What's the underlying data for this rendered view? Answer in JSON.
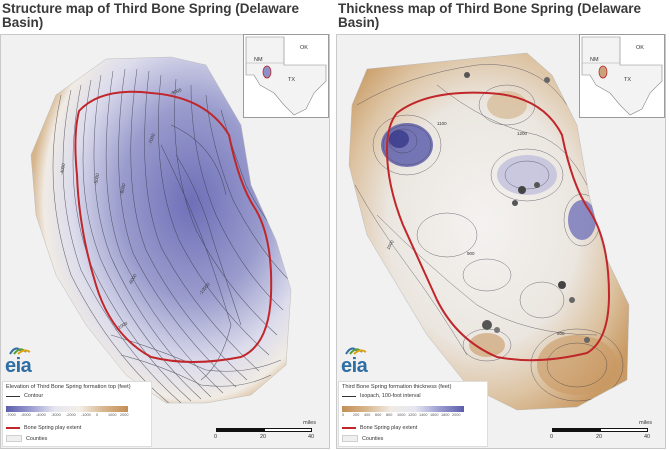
{
  "left": {
    "title": "Structure map of Third Bone Spring (Delaware Basin)",
    "legend": {
      "title": "Elevation of Third Bone Spring formation top (feet)",
      "contour_label": "Contour",
      "gradient_ticks": [
        "-7000",
        "-5000",
        "-4000",
        "-3000",
        "-2000",
        "-1000",
        "0",
        "1000",
        "2000"
      ],
      "play_label": "Bone Spring play extent",
      "counties_label": "Counties"
    },
    "contour_labels": [
      "-4000",
      "-5000",
      "-6000",
      "-7000",
      "-8000",
      "-9000",
      "-10000",
      "-11000"
    ],
    "colors": {
      "low": "#6e6fb8",
      "mid": "#e9e9f3",
      "high": "#c89a66"
    }
  },
  "right": {
    "title": "Thickness map of Third Bone Spring (Delaware Basin)",
    "legend": {
      "title": "Third Bone Spring formation thickness (feet)",
      "contour_label": "Isopach, 100-foot interval",
      "gradient_ticks": [
        "0",
        "200",
        "400",
        "600",
        "800",
        "1000",
        "1200",
        "1400",
        "1600",
        "1800",
        "2000"
      ],
      "play_label": "Bone Spring play extent",
      "counties_label": "Counties"
    },
    "contour_labels": [
      "1000",
      "900",
      "800",
      "1100",
      "1200"
    ],
    "colors": {
      "low": "#c89a66",
      "mid": "#f2f0ee",
      "high": "#6e6fb8"
    }
  },
  "inset": {
    "nm": "NM",
    "ok": "OK",
    "tx": "TX"
  },
  "logo": "eia",
  "scale": {
    "units": "miles",
    "ticks": [
      "0",
      "20",
      "40"
    ]
  },
  "play_color": "#c0262a"
}
